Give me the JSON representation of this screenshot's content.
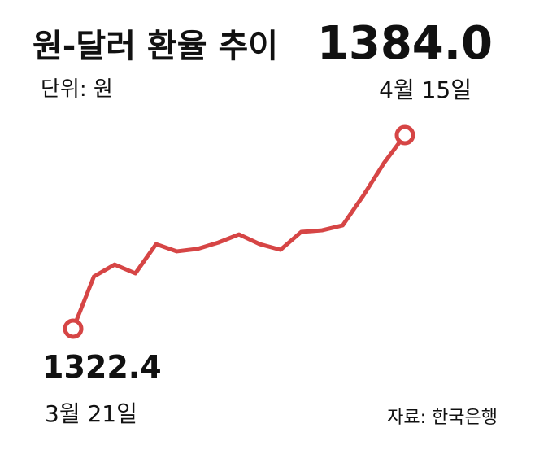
{
  "chart_data": {
    "type": "line",
    "title": "원-달러 환율 추이",
    "subtitle": "단위: 원",
    "source": "자료: 한국은행",
    "categories": [
      "3월 21일",
      null,
      null,
      null,
      null,
      null,
      null,
      null,
      null,
      null,
      null,
      null,
      null,
      null,
      null,
      null,
      "4월 15일"
    ],
    "series": [
      {
        "color": "#d64545",
        "values": [
          1322.4,
          1339.0,
          1342.8,
          1340.0,
          1349.3,
          1347.0,
          1347.8,
          1349.8,
          1352.4,
          1349.3,
          1347.5,
          1353.2,
          1353.7,
          1355.3,
          1364.8,
          1375.2,
          1384.0
        ],
        "value_labels": [
          "1322.4",
          null,
          null,
          null,
          null,
          null,
          null,
          null,
          null,
          null,
          null,
          null,
          null,
          null,
          null,
          null,
          "1384.0"
        ],
        "label_color": "#8c1010"
      }
    ]
  }
}
